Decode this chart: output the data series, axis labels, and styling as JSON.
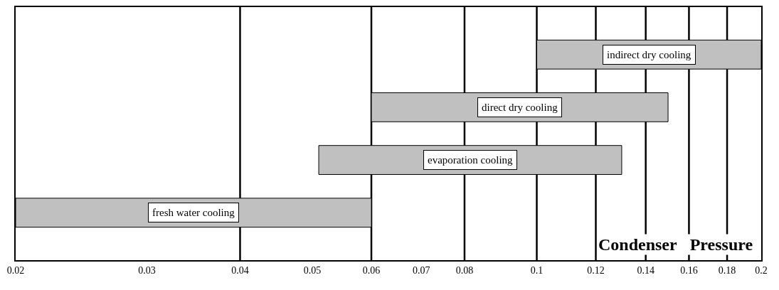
{
  "chart_data": {
    "type": "bar",
    "orientation": "horizontal",
    "xlabel": "Condenser  Pressure",
    "categories": [
      "indirect dry cooling",
      "direct dry cooling",
      "evaporation cooling",
      "fresh water cooling"
    ],
    "base": [
      0.1,
      0.06,
      0.051,
      0.02
    ],
    "values": [
      0.1,
      0.09,
      0.079,
      0.04
    ],
    "color": "#c0c0c0",
    "log": "x",
    "xlim": [
      0.02,
      0.2
    ],
    "xticks": [
      0.02,
      0.03,
      0.04,
      0.05,
      0.06,
      0.07,
      0.08,
      0.1,
      0.12,
      0.14,
      0.16,
      0.18,
      0.2
    ],
    "tick_labels": "x",
    "grid": false,
    "ref_lines": [
      {
        "axis": "x",
        "value": 0.04,
        "color": "#000000"
      },
      {
        "axis": "x",
        "value": 0.06,
        "color": "#000000"
      },
      {
        "axis": "x",
        "value": 0.08,
        "color": "#000000"
      },
      {
        "axis": "x",
        "value": 0.1,
        "color": "#000000"
      },
      {
        "axis": "x",
        "value": 0.12,
        "color": "#000000"
      },
      {
        "axis": "x",
        "value": 0.14,
        "color": "#000000"
      },
      {
        "axis": "x",
        "value": 0.16,
        "color": "#000000"
      },
      {
        "axis": "x",
        "value": 0.18,
        "color": "#000000"
      }
    ]
  }
}
